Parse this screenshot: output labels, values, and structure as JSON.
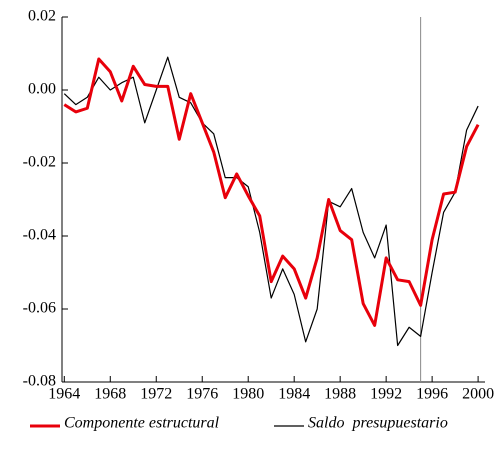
{
  "chart_data": {
    "type": "line",
    "x": [
      1964,
      1965,
      1966,
      1967,
      1968,
      1969,
      1970,
      1971,
      1972,
      1973,
      1974,
      1975,
      1976,
      1977,
      1978,
      1979,
      1980,
      1981,
      1982,
      1983,
      1984,
      1985,
      1986,
      1987,
      1988,
      1989,
      1990,
      1991,
      1992,
      1993,
      1994,
      1995,
      1996,
      1997,
      1998,
      1999,
      2000
    ],
    "series": [
      {
        "name": "Componente estructural",
        "color": "#e8000b",
        "values": [
          -0.004,
          -0.006,
          -0.005,
          0.0085,
          0.005,
          -0.003,
          0.0065,
          0.0015,
          0.001,
          0.001,
          -0.0135,
          -0.001,
          -0.009,
          -0.017,
          -0.0295,
          -0.023,
          -0.029,
          -0.0345,
          -0.0525,
          -0.0455,
          -0.049,
          -0.057,
          -0.046,
          -0.03,
          -0.0385,
          -0.041,
          -0.0585,
          -0.0645,
          -0.046,
          -0.052,
          -0.0525,
          -0.059,
          -0.041,
          -0.0285,
          -0.028,
          -0.0155,
          -0.0095
        ]
      },
      {
        "name": "Saldo  presupuestario",
        "color": "#000000",
        "values": [
          -0.001,
          -0.004,
          -0.002,
          0.0035,
          0.0,
          0.002,
          0.0035,
          -0.009,
          0.0,
          0.009,
          -0.002,
          -0.0035,
          -0.009,
          -0.012,
          -0.024,
          -0.024,
          -0.0265,
          -0.039,
          -0.057,
          -0.049,
          -0.056,
          -0.069,
          -0.06,
          -0.0305,
          -0.032,
          -0.027,
          -0.039,
          -0.046,
          -0.037,
          -0.07,
          -0.065,
          -0.0675,
          -0.05,
          -0.0335,
          -0.028,
          -0.011,
          -0.0044
        ]
      }
    ],
    "xlim": [
      1963.8,
      2000.6
    ],
    "ylim": [
      -0.08,
      0.02
    ],
    "xticks": [
      1964,
      1968,
      1972,
      1976,
      1980,
      1984,
      1988,
      1992,
      1996,
      2000
    ],
    "yticks": [
      {
        "value": 0.02,
        "label": "0.02"
      },
      {
        "value": 0,
        "label": "0.00"
      },
      {
        "value": -0.02,
        "label": "-0.02"
      },
      {
        "value": -0.04,
        "label": "-0.04"
      },
      {
        "value": -0.06,
        "label": "-0.06"
      },
      {
        "value": -0.08,
        "label": "-0.08"
      }
    ],
    "vline": 1995
  }
}
